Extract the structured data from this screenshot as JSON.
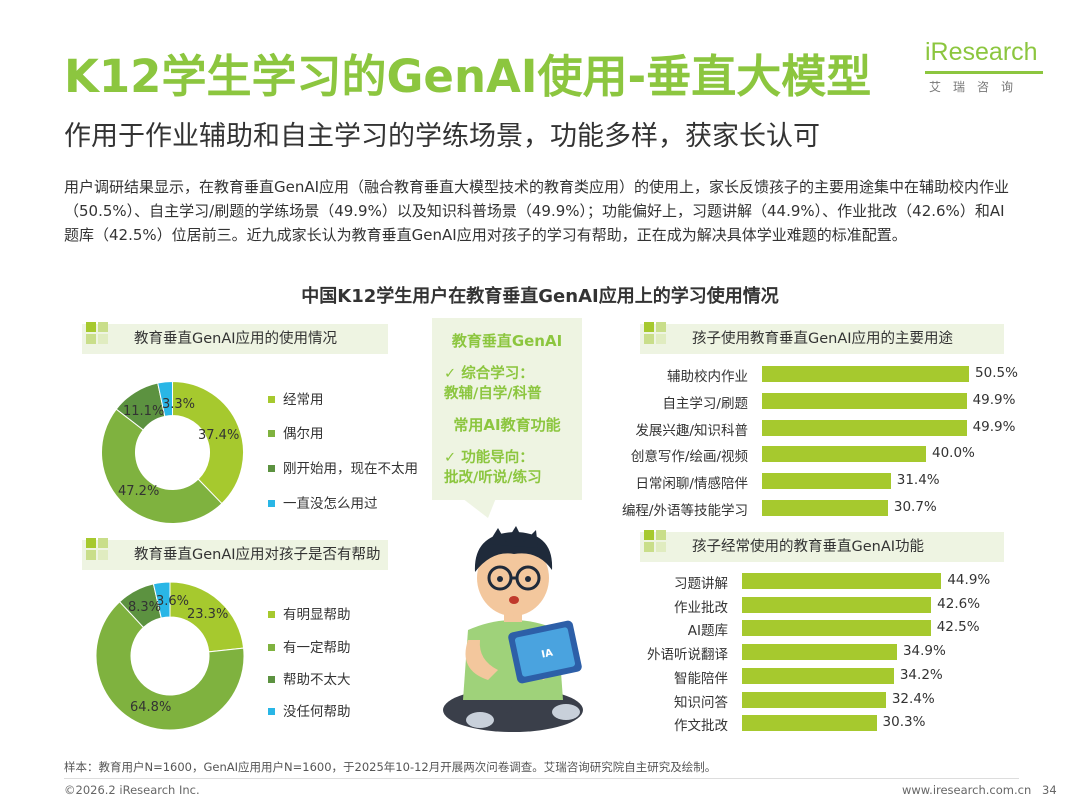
{
  "header": {
    "title": "K12学生学习的GenAI使用-垂直大模型",
    "subtitle": "作用于作业辅助和自主学习的学练场景，功能多样，获家长认可",
    "logo_main": "iResearch",
    "logo_sub": "艾瑞咨询"
  },
  "intro": "用户调研结果显示，在教育垂直GenAI应用（融合教育垂直大模型技术的教育类应用）的使用上，家长反馈孩子的主要用途集中在辅助校内作业（50.5%）、自主学习/刷题的学练场景（49.9%）以及知识科普场景（49.9%）；功能偏好上，习题讲解（44.9%）、作业批改（42.6%）和AI题库（42.5%）位居前三。近九成家长认为教育垂直GenAI应用对孩子的学习有帮助，正在成为解决具体学业难题的标准配置。",
  "center_box": {
    "head1": "教育垂直GenAI",
    "line1": "✓ 综合学习：",
    "line2": "教辅/自学/科普",
    "head2": "常用AI教育功能",
    "line3": "✓ 功能导向：",
    "line4": "批改/听说/练习",
    "tablet_text": "IA"
  },
  "colors": {
    "green_light": "#a6c92e",
    "green_mid": "#7fb23f",
    "green_dark": "#5c9240",
    "cyan": "#29b6e6",
    "bar": "#a6c92e"
  },
  "chart_data": [
    {
      "type": "pie",
      "title": "中国K12学生用户在教育垂直GenAI应用上的学习使用情况",
      "subtitle": "教育垂直GenAI应用的使用情况",
      "categories": [
        "经常用",
        "偶尔用",
        "刚开始用，现在不太用",
        "一直没怎么用过"
      ],
      "values": [
        37.4,
        47.2,
        11.1,
        3.3
      ],
      "labels": [
        "37.4%",
        "47.2%",
        "11.1%",
        "3.3%"
      ]
    },
    {
      "type": "pie",
      "subtitle": "教育垂直GenAI应用对孩子是否有帮助",
      "categories": [
        "有明显帮助",
        "有一定帮助",
        "帮助不太大",
        "没任何帮助"
      ],
      "values": [
        23.3,
        64.8,
        8.3,
        3.6
      ],
      "labels": [
        "23.3%",
        "64.8%",
        "8.3%",
        "3.6%"
      ]
    },
    {
      "type": "bar",
      "subtitle": "孩子使用教育垂直GenAI应用的主要用途",
      "categories": [
        "辅助校内作业",
        "自主学习/刷题",
        "发展兴趣/知识科普",
        "创意写作/绘画/视频",
        "日常闲聊/情感陪伴",
        "编程/外语等技能学习"
      ],
      "values": [
        50.5,
        49.9,
        49.9,
        40.0,
        31.4,
        30.7
      ],
      "labels": [
        "50.5%",
        "49.9%",
        "49.9%",
        "40.0%",
        "31.4%",
        "30.7%"
      ]
    },
    {
      "type": "bar",
      "subtitle": "孩子经常使用的教育垂直GenAI功能",
      "categories": [
        "习题讲解",
        "作业批改",
        "AI题库",
        "外语听说翻译",
        "智能陪伴",
        "知识问答",
        "作文批改"
      ],
      "values": [
        44.9,
        42.6,
        42.5,
        34.9,
        34.2,
        32.4,
        30.3
      ],
      "labels": [
        "44.9%",
        "42.6%",
        "42.5%",
        "34.9%",
        "34.2%",
        "32.4%",
        "30.3%"
      ]
    }
  ],
  "footnote": "样本：教育用户N=1600，GenAI应用用户N=1600，于2025年10-12月开展两次问卷调查。艾瑞咨询研究院自主研究及绘制。",
  "footer": {
    "copyright": "©2026.2 iResearch Inc.",
    "website": "www.iresearch.com.cn",
    "page": "34"
  }
}
